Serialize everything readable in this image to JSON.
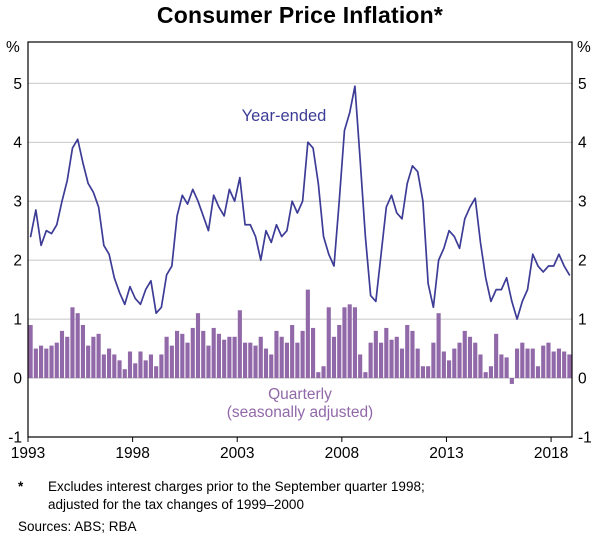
{
  "title": "Consumer Price Inflation*",
  "chart": {
    "ylabel_left": "%",
    "ylabel_right": "%",
    "annotation_line": "Year-ended",
    "annotation_bar_1": "Quarterly",
    "annotation_bar_2": "(seasonally adjusted)"
  },
  "chart_data": {
    "type": "mixed",
    "title": "Consumer Price Inflation*",
    "x_start": 1993,
    "x_step_years": 0.25,
    "xlim": [
      1993,
      2019
    ],
    "ylim": [
      -1,
      5.7
    ],
    "grid": true,
    "x_ticks": [
      "1993",
      "1998",
      "2003",
      "2008",
      "2013",
      "2018"
    ],
    "y_ticks": [
      "-1",
      "0",
      "1",
      "2",
      "3",
      "4",
      "5"
    ],
    "colors": {
      "line": "#3d3c96",
      "bar": "#9168a8",
      "grid": "#b5b5b5",
      "axis": "#000000"
    },
    "series": [
      {
        "name": "Year-ended",
        "type": "line",
        "color": "#3d3c96",
        "values": [
          2.4,
          2.85,
          2.25,
          2.5,
          2.45,
          2.6,
          3.0,
          3.35,
          3.9,
          4.05,
          3.65,
          3.3,
          3.15,
          2.9,
          2.25,
          2.1,
          1.7,
          1.45,
          1.25,
          1.55,
          1.35,
          1.25,
          1.5,
          1.65,
          1.1,
          1.2,
          1.75,
          1.9,
          2.75,
          3.1,
          2.95,
          3.2,
          3.0,
          2.75,
          2.5,
          3.1,
          2.9,
          2.75,
          3.2,
          3.0,
          3.4,
          2.6,
          2.6,
          2.4,
          2.0,
          2.5,
          2.3,
          2.6,
          2.4,
          2.5,
          3.0,
          2.8,
          3.0,
          4.0,
          3.9,
          3.3,
          2.4,
          2.1,
          1.9,
          3.0,
          4.2,
          4.5,
          4.95,
          3.7,
          2.4,
          1.4,
          1.3,
          2.1,
          2.9,
          3.1,
          2.8,
          2.7,
          3.3,
          3.6,
          3.5,
          3.0,
          1.6,
          1.2,
          2.0,
          2.2,
          2.5,
          2.4,
          2.2,
          2.7,
          2.9,
          3.05,
          2.3,
          1.7,
          1.3,
          1.5,
          1.5,
          1.7,
          1.3,
          1.0,
          1.3,
          1.5,
          2.1,
          1.9,
          1.8,
          1.9,
          1.9,
          2.1,
          1.9,
          1.75
        ]
      },
      {
        "name": "Quarterly (seasonally adjusted)",
        "type": "bar",
        "color": "#9168a8",
        "values": [
          0.9,
          0.5,
          0.55,
          0.5,
          0.55,
          0.6,
          0.8,
          0.7,
          1.2,
          1.1,
          0.9,
          0.55,
          0.7,
          0.75,
          0.4,
          0.5,
          0.4,
          0.3,
          0.15,
          0.45,
          0.25,
          0.45,
          0.3,
          0.4,
          0.2,
          0.4,
          0.7,
          0.55,
          0.8,
          0.75,
          0.6,
          0.85,
          1.1,
          0.8,
          0.55,
          0.85,
          0.75,
          0.65,
          0.7,
          0.7,
          1.15,
          0.6,
          0.6,
          0.55,
          0.7,
          0.5,
          0.4,
          0.8,
          0.7,
          0.6,
          0.9,
          0.6,
          0.8,
          1.5,
          0.85,
          0.1,
          0.2,
          1.2,
          0.7,
          0.9,
          1.2,
          1.25,
          1.2,
          0.4,
          0.1,
          0.6,
          0.8,
          0.6,
          0.85,
          0.65,
          0.7,
          0.5,
          0.9,
          0.8,
          0.5,
          0.2,
          0.2,
          0.6,
          1.1,
          0.45,
          0.3,
          0.5,
          0.6,
          0.8,
          0.7,
          0.6,
          0.4,
          0.1,
          0.2,
          0.75,
          0.4,
          0.35,
          -0.1,
          0.5,
          0.6,
          0.5,
          0.5,
          0.2,
          0.55,
          0.6,
          0.45,
          0.5,
          0.45,
          0.4
        ]
      }
    ]
  },
  "footnote": {
    "marker": "*",
    "line1": "Excludes interest charges prior to the September quarter 1998;",
    "line2": "adjusted for the tax changes of 1999–2000"
  },
  "sources": "Sources: ABS; RBA"
}
